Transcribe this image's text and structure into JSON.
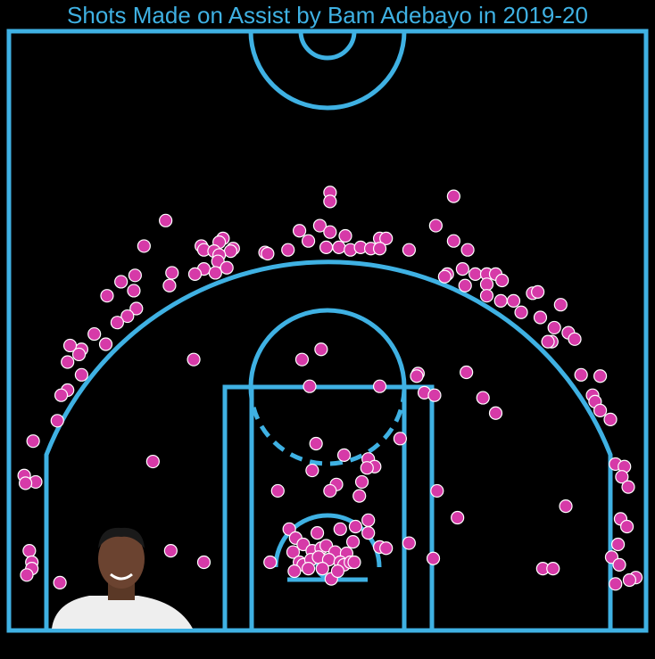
{
  "chart_data": {
    "type": "scatter",
    "title": "Shots Made on Assist by Bam Adebayo in 2019-20",
    "color": "#d63aa8",
    "xlim": [
      -250,
      250
    ],
    "ylim": [
      -47.5,
      422.5
    ],
    "x": [
      2,
      99,
      2,
      -127,
      85,
      -6,
      -22,
      2,
      14,
      -15,
      41,
      46,
      -144,
      -82,
      -85,
      -99,
      -97,
      -74,
      -76,
      -89,
      -85,
      -49,
      -47,
      -31,
      -1,
      9,
      18,
      26,
      34,
      41,
      64,
      99,
      110,
      -86,
      -97,
      -104,
      -88,
      -79,
      -122,
      -124,
      -151,
      -162,
      -152,
      -173,
      -150,
      -157,
      -165,
      -183,
      -174,
      -193,
      -202,
      -204,
      -195,
      -193,
      -204,
      -209,
      -212,
      -231,
      -238,
      -229,
      -237,
      -234,
      -232,
      -232,
      -236,
      -210,
      94,
      92,
      106,
      116,
      125,
      132,
      108,
      125,
      137,
      125,
      136,
      146,
      152,
      161,
      165,
      183,
      167,
      178,
      176,
      189,
      194,
      173,
      199,
      214,
      208,
      210,
      214,
      222,
      226,
      233,
      231,
      236,
      230,
      235,
      228,
      223,
      229,
      242,
      237,
      226,
      -105,
      -20,
      -5,
      -14,
      41,
      71,
      70,
      109,
      76,
      84,
      122,
      132,
      57,
      -9,
      13,
      32,
      37,
      31,
      -12,
      -137,
      27,
      7,
      2,
      -39,
      25,
      86,
      187,
      102,
      32,
      32,
      -123,
      -97,
      -30,
      -8,
      10,
      22,
      -45,
      -25,
      -27,
      -19,
      -12,
      -5,
      -1,
      6,
      15,
      20,
      41,
      46,
      64,
      83,
      -22,
      -19,
      -13,
      -7,
      1,
      10,
      13,
      18,
      21,
      -4,
      3,
      -26,
      -15,
      8,
      169,
      177
    ],
    "values": [
      296,
      293,
      289,
      274,
      270,
      270,
      266,
      265,
      262,
      258,
      260,
      260,
      254,
      260,
      257,
      254,
      251,
      252,
      250,
      250,
      247,
      249,
      248,
      251,
      253,
      253,
      251,
      253,
      252,
      252,
      251,
      258,
      251,
      242,
      236,
      232,
      233,
      237,
      233,
      223,
      231,
      226,
      219,
      215,
      205,
      199,
      194,
      185,
      177,
      173,
      176,
      163,
      169,
      153,
      141,
      137,
      117,
      101,
      74,
      69,
      68,
      15,
      6,
      1,
      -4,
      -10,
      232,
      230,
      236,
      232,
      232,
      232,
      223,
      224,
      227,
      215,
      211,
      211,
      202,
      217,
      218,
      208,
      198,
      190,
      179,
      186,
      181,
      179,
      153,
      152,
      137,
      132,
      125,
      118,
      83,
      81,
      73,
      65,
      40,
      34,
      20,
      10,
      4,
      -6,
      -8,
      -11,
      165,
      165,
      173,
      144,
      144,
      154,
      152,
      155,
      139,
      137,
      135,
      123,
      103,
      99,
      90,
      87,
      81,
      80,
      78,
      85,
      69,
      67,
      62,
      62,
      58,
      62,
      50,
      41,
      39,
      29,
      15,
      6,
      32,
      29,
      32,
      34,
      6,
      25,
      14,
      20,
      15,
      17,
      19,
      14,
      13,
      22,
      18,
      17,
      21,
      9,
      6,
      4,
      8,
      10,
      8,
      6,
      4,
      6,
      6,
      1,
      -7,
      -1,
      1,
      -1,
      1,
      1
    ]
  }
}
